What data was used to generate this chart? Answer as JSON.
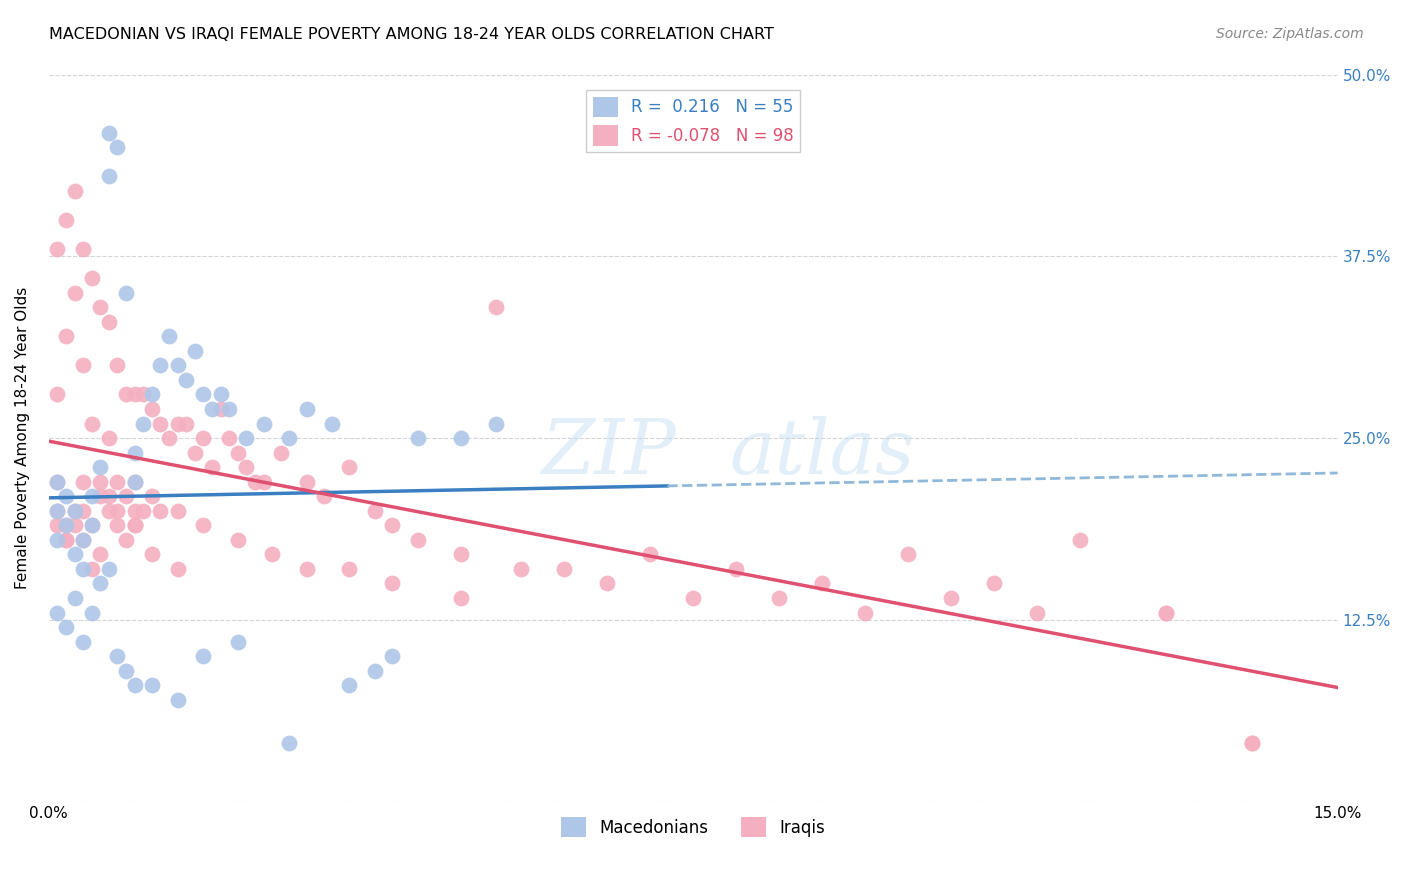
{
  "title": "MACEDONIAN VS IRAQI FEMALE POVERTY AMONG 18-24 YEAR OLDS CORRELATION CHART",
  "source": "Source: ZipAtlas.com",
  "ylabel": "Female Poverty Among 18-24 Year Olds",
  "xlim": [
    0.0,
    0.15
  ],
  "ylim": [
    0.0,
    0.5
  ],
  "background_color": "#ffffff",
  "grid_color": "#d0d0d0",
  "macedonian_color": "#aec6e8",
  "iraqi_color": "#f4afc0",
  "macedonian_line_color": "#3a7fc1",
  "iraqi_line_color": "#e05070",
  "dashed_line_color": "#90b8d8",
  "R_macedonian": 0.216,
  "N_macedonian": 55,
  "R_iraqi": -0.078,
  "N_iraqi": 98,
  "legend_label_macedonian": "Macedonians",
  "legend_label_iraqi": "Iraqis",
  "macedonian_scatter_x": [
    0.001,
    0.001,
    0.001,
    0.002,
    0.002,
    0.003,
    0.003,
    0.004,
    0.004,
    0.005,
    0.005,
    0.006,
    0.007,
    0.007,
    0.008,
    0.009,
    0.01,
    0.01,
    0.011,
    0.012,
    0.013,
    0.014,
    0.015,
    0.016,
    0.017,
    0.018,
    0.019,
    0.02,
    0.021,
    0.023,
    0.025,
    0.028,
    0.03,
    0.033,
    0.035,
    0.038,
    0.04,
    0.043,
    0.048,
    0.052,
    0.001,
    0.002,
    0.003,
    0.004,
    0.005,
    0.006,
    0.007,
    0.008,
    0.009,
    0.01,
    0.012,
    0.015,
    0.018,
    0.022,
    0.028
  ],
  "macedonian_scatter_y": [
    0.2,
    0.18,
    0.22,
    0.19,
    0.21,
    0.17,
    0.2,
    0.16,
    0.18,
    0.19,
    0.21,
    0.23,
    0.43,
    0.46,
    0.45,
    0.35,
    0.22,
    0.24,
    0.26,
    0.28,
    0.3,
    0.32,
    0.3,
    0.29,
    0.31,
    0.28,
    0.27,
    0.28,
    0.27,
    0.25,
    0.26,
    0.25,
    0.27,
    0.26,
    0.08,
    0.09,
    0.1,
    0.25,
    0.25,
    0.26,
    0.13,
    0.12,
    0.14,
    0.11,
    0.13,
    0.15,
    0.16,
    0.1,
    0.09,
    0.08,
    0.08,
    0.07,
    0.1,
    0.11,
    0.04
  ],
  "iraqi_scatter_x": [
    0.001,
    0.001,
    0.001,
    0.002,
    0.002,
    0.002,
    0.003,
    0.003,
    0.003,
    0.004,
    0.004,
    0.004,
    0.005,
    0.005,
    0.005,
    0.006,
    0.006,
    0.007,
    0.007,
    0.007,
    0.008,
    0.008,
    0.009,
    0.009,
    0.01,
    0.01,
    0.01,
    0.011,
    0.011,
    0.012,
    0.012,
    0.013,
    0.013,
    0.014,
    0.015,
    0.015,
    0.016,
    0.017,
    0.018,
    0.019,
    0.02,
    0.021,
    0.022,
    0.023,
    0.024,
    0.025,
    0.027,
    0.03,
    0.032,
    0.035,
    0.038,
    0.04,
    0.043,
    0.048,
    0.052,
    0.06,
    0.07,
    0.08,
    0.09,
    0.1,
    0.11,
    0.12,
    0.13,
    0.14,
    0.001,
    0.002,
    0.003,
    0.004,
    0.005,
    0.006,
    0.007,
    0.008,
    0.009,
    0.01,
    0.012,
    0.015,
    0.018,
    0.022,
    0.026,
    0.03,
    0.035,
    0.04,
    0.048,
    0.055,
    0.065,
    0.075,
    0.085,
    0.095,
    0.105,
    0.115,
    0.13,
    0.14,
    0.001,
    0.002,
    0.004,
    0.006,
    0.008,
    0.01
  ],
  "iraqi_scatter_y": [
    0.38,
    0.28,
    0.22,
    0.4,
    0.32,
    0.18,
    0.42,
    0.35,
    0.2,
    0.38,
    0.3,
    0.2,
    0.36,
    0.26,
    0.19,
    0.34,
    0.22,
    0.33,
    0.25,
    0.2,
    0.3,
    0.22,
    0.28,
    0.21,
    0.28,
    0.22,
    0.19,
    0.28,
    0.2,
    0.27,
    0.21,
    0.26,
    0.2,
    0.25,
    0.26,
    0.2,
    0.26,
    0.24,
    0.25,
    0.23,
    0.27,
    0.25,
    0.24,
    0.23,
    0.22,
    0.22,
    0.24,
    0.22,
    0.21,
    0.23,
    0.2,
    0.19,
    0.18,
    0.17,
    0.34,
    0.16,
    0.17,
    0.16,
    0.15,
    0.17,
    0.15,
    0.18,
    0.13,
    0.04,
    0.19,
    0.18,
    0.19,
    0.18,
    0.16,
    0.17,
    0.21,
    0.19,
    0.18,
    0.2,
    0.17,
    0.16,
    0.19,
    0.18,
    0.17,
    0.16,
    0.16,
    0.15,
    0.14,
    0.16,
    0.15,
    0.14,
    0.14,
    0.13,
    0.14,
    0.13,
    0.13,
    0.04,
    0.2,
    0.19,
    0.22,
    0.21,
    0.2,
    0.19
  ]
}
